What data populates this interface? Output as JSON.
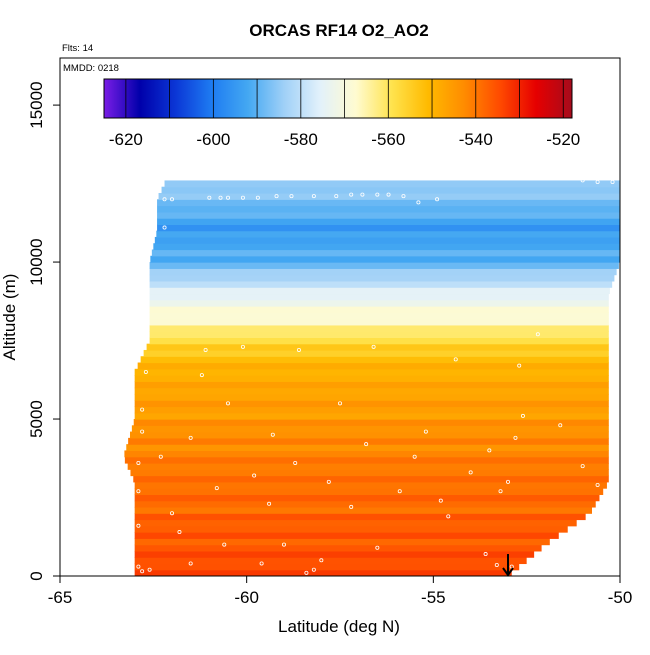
{
  "chart_data": {
    "type": "heatmap",
    "title": "ORCAS RF14 O2_AO2",
    "annotations": [
      "Flts: 14",
      "MMDD: 0218"
    ],
    "xlabel": "Latitude (deg N)",
    "ylabel": "Altitude (m)",
    "xlim": [
      -65,
      -50
    ],
    "ylim": [
      0,
      16500
    ],
    "x_ticks": [
      -65,
      -60,
      -55,
      -50
    ],
    "y_ticks": [
      0,
      5000,
      10000,
      15000
    ],
    "colorbar": {
      "range": [
        -625,
        -518
      ],
      "ticks": [
        -620,
        -600,
        -580,
        -560,
        -540,
        -520
      ],
      "colors": [
        "#7a1de6",
        "#0000aa",
        "#0b37d6",
        "#1e7cf2",
        "#44a8f2",
        "#9fd0f7",
        "#e2f1fb",
        "#fffbd0",
        "#ffe34d",
        "#ffba00",
        "#ff8c00",
        "#ff4a00",
        "#e60000",
        "#a60b1c"
      ]
    },
    "profile": [
      {
        "altitude": 0,
        "lat_min": -63.0,
        "lat_max": -53.0
      },
      {
        "altitude": 1000,
        "lat_min": -63.0,
        "lat_max": -52.0
      },
      {
        "altitude": 2000,
        "lat_min": -63.0,
        "lat_max": -50.8
      },
      {
        "altitude": 3000,
        "lat_min": -63.0,
        "lat_max": -50.3
      },
      {
        "altitude": 3800,
        "lat_min": -63.3,
        "lat_max": -50.3
      },
      {
        "altitude": 5000,
        "lat_min": -63.0,
        "lat_max": -50.3
      },
      {
        "altitude": 6500,
        "lat_min": -63.0,
        "lat_max": -50.3
      },
      {
        "altitude": 7500,
        "lat_min": -62.6,
        "lat_max": -50.3
      },
      {
        "altitude": 9000,
        "lat_min": -62.6,
        "lat_max": -50.3
      },
      {
        "altitude": 10000,
        "lat_min": -62.6,
        "lat_max": -50.0
      },
      {
        "altitude": 11000,
        "lat_min": -62.4,
        "lat_max": -50.0
      },
      {
        "altitude": 12000,
        "lat_min": -62.4,
        "lat_max": -50.0
      },
      {
        "altitude": 12500,
        "lat_min": -62.2,
        "lat_max": -50.0
      }
    ],
    "value_by_altitude": [
      {
        "altitude": 0,
        "value": -535
      },
      {
        "altitude": 1000,
        "value": -536
      },
      {
        "altitude": 2000,
        "value": -538
      },
      {
        "altitude": 3000,
        "value": -540
      },
      {
        "altitude": 4000,
        "value": -542
      },
      {
        "altitude": 5000,
        "value": -545
      },
      {
        "altitude": 6000,
        "value": -548
      },
      {
        "altitude": 7000,
        "value": -552
      },
      {
        "altitude": 8000,
        "value": -565
      },
      {
        "altitude": 9000,
        "value": -576
      },
      {
        "altitude": 10000,
        "value": -590
      },
      {
        "altitude": 11000,
        "value": -595
      },
      {
        "altitude": 12000,
        "value": -588
      },
      {
        "altitude": 12400,
        "value": -585
      }
    ],
    "sample_points": [
      [
        -62.9,
        300
      ],
      [
        -62.8,
        150
      ],
      [
        -62.6,
        200
      ],
      [
        -62.9,
        1600
      ],
      [
        -62.9,
        2700
      ],
      [
        -62.9,
        3600
      ],
      [
        -62.8,
        4600
      ],
      [
        -62.8,
        5300
      ],
      [
        -62.7,
        6500
      ],
      [
        -62.3,
        3800
      ],
      [
        -62.0,
        2000
      ],
      [
        -61.8,
        1400
      ],
      [
        -61.5,
        400
      ],
      [
        -61.5,
        4400
      ],
      [
        -61.2,
        6400
      ],
      [
        -61.1,
        7200
      ],
      [
        -60.8,
        2800
      ],
      [
        -60.6,
        1000
      ],
      [
        -60.5,
        5500
      ],
      [
        -60.1,
        7300
      ],
      [
        -59.8,
        3200
      ],
      [
        -59.6,
        400
      ],
      [
        -59.4,
        2300
      ],
      [
        -59.3,
        4500
      ],
      [
        -59.0,
        1000
      ],
      [
        -58.7,
        3600
      ],
      [
        -58.6,
        7200
      ],
      [
        -58.4,
        100
      ],
      [
        -58.2,
        200
      ],
      [
        -58.0,
        500
      ],
      [
        -57.8,
        3000
      ],
      [
        -57.5,
        5500
      ],
      [
        -57.2,
        2200
      ],
      [
        -56.8,
        4200
      ],
      [
        -56.6,
        7300
      ],
      [
        -56.5,
        900
      ],
      [
        -55.9,
        2700
      ],
      [
        -55.5,
        3800
      ],
      [
        -55.2,
        4600
      ],
      [
        -54.8,
        2400
      ],
      [
        -54.6,
        1900
      ],
      [
        -54.4,
        6900
      ],
      [
        -54.0,
        3300
      ],
      [
        -53.6,
        700
      ],
      [
        -53.5,
        4000
      ],
      [
        -53.2,
        2700
      ],
      [
        -53.0,
        3000
      ],
      [
        -52.8,
        4400
      ],
      [
        -52.6,
        5100
      ],
      [
        -52.7,
        6700
      ],
      [
        -52.2,
        7700
      ],
      [
        -51.6,
        4800
      ],
      [
        -51.0,
        3500
      ],
      [
        -50.6,
        2900
      ],
      [
        -50.4,
        2400
      ],
      [
        -50.2,
        3000
      ],
      [
        -52.9,
        300
      ],
      [
        -53.3,
        350
      ],
      [
        -62.2,
        12000
      ],
      [
        -62.0,
        12000
      ],
      [
        -62.2,
        11100
      ],
      [
        -61.0,
        12050
      ],
      [
        -60.7,
        12050
      ],
      [
        -60.5,
        12050
      ],
      [
        -60.1,
        12050
      ],
      [
        -59.7,
        12050
      ],
      [
        -59.2,
        12100
      ],
      [
        -58.8,
        12100
      ],
      [
        -58.2,
        12100
      ],
      [
        -57.6,
        12100
      ],
      [
        -57.2,
        12150
      ],
      [
        -56.9,
        12150
      ],
      [
        -56.5,
        12150
      ],
      [
        -56.2,
        12150
      ],
      [
        -55.8,
        12100
      ],
      [
        -55.4,
        11900
      ],
      [
        -54.9,
        12000
      ],
      [
        -51.0,
        12600
      ],
      [
        -50.6,
        12550
      ],
      [
        -50.2,
        12550
      ]
    ],
    "descent_arrow": {
      "latitude": -53.0,
      "from_altitude": 700,
      "to_altitude": 0
    }
  }
}
